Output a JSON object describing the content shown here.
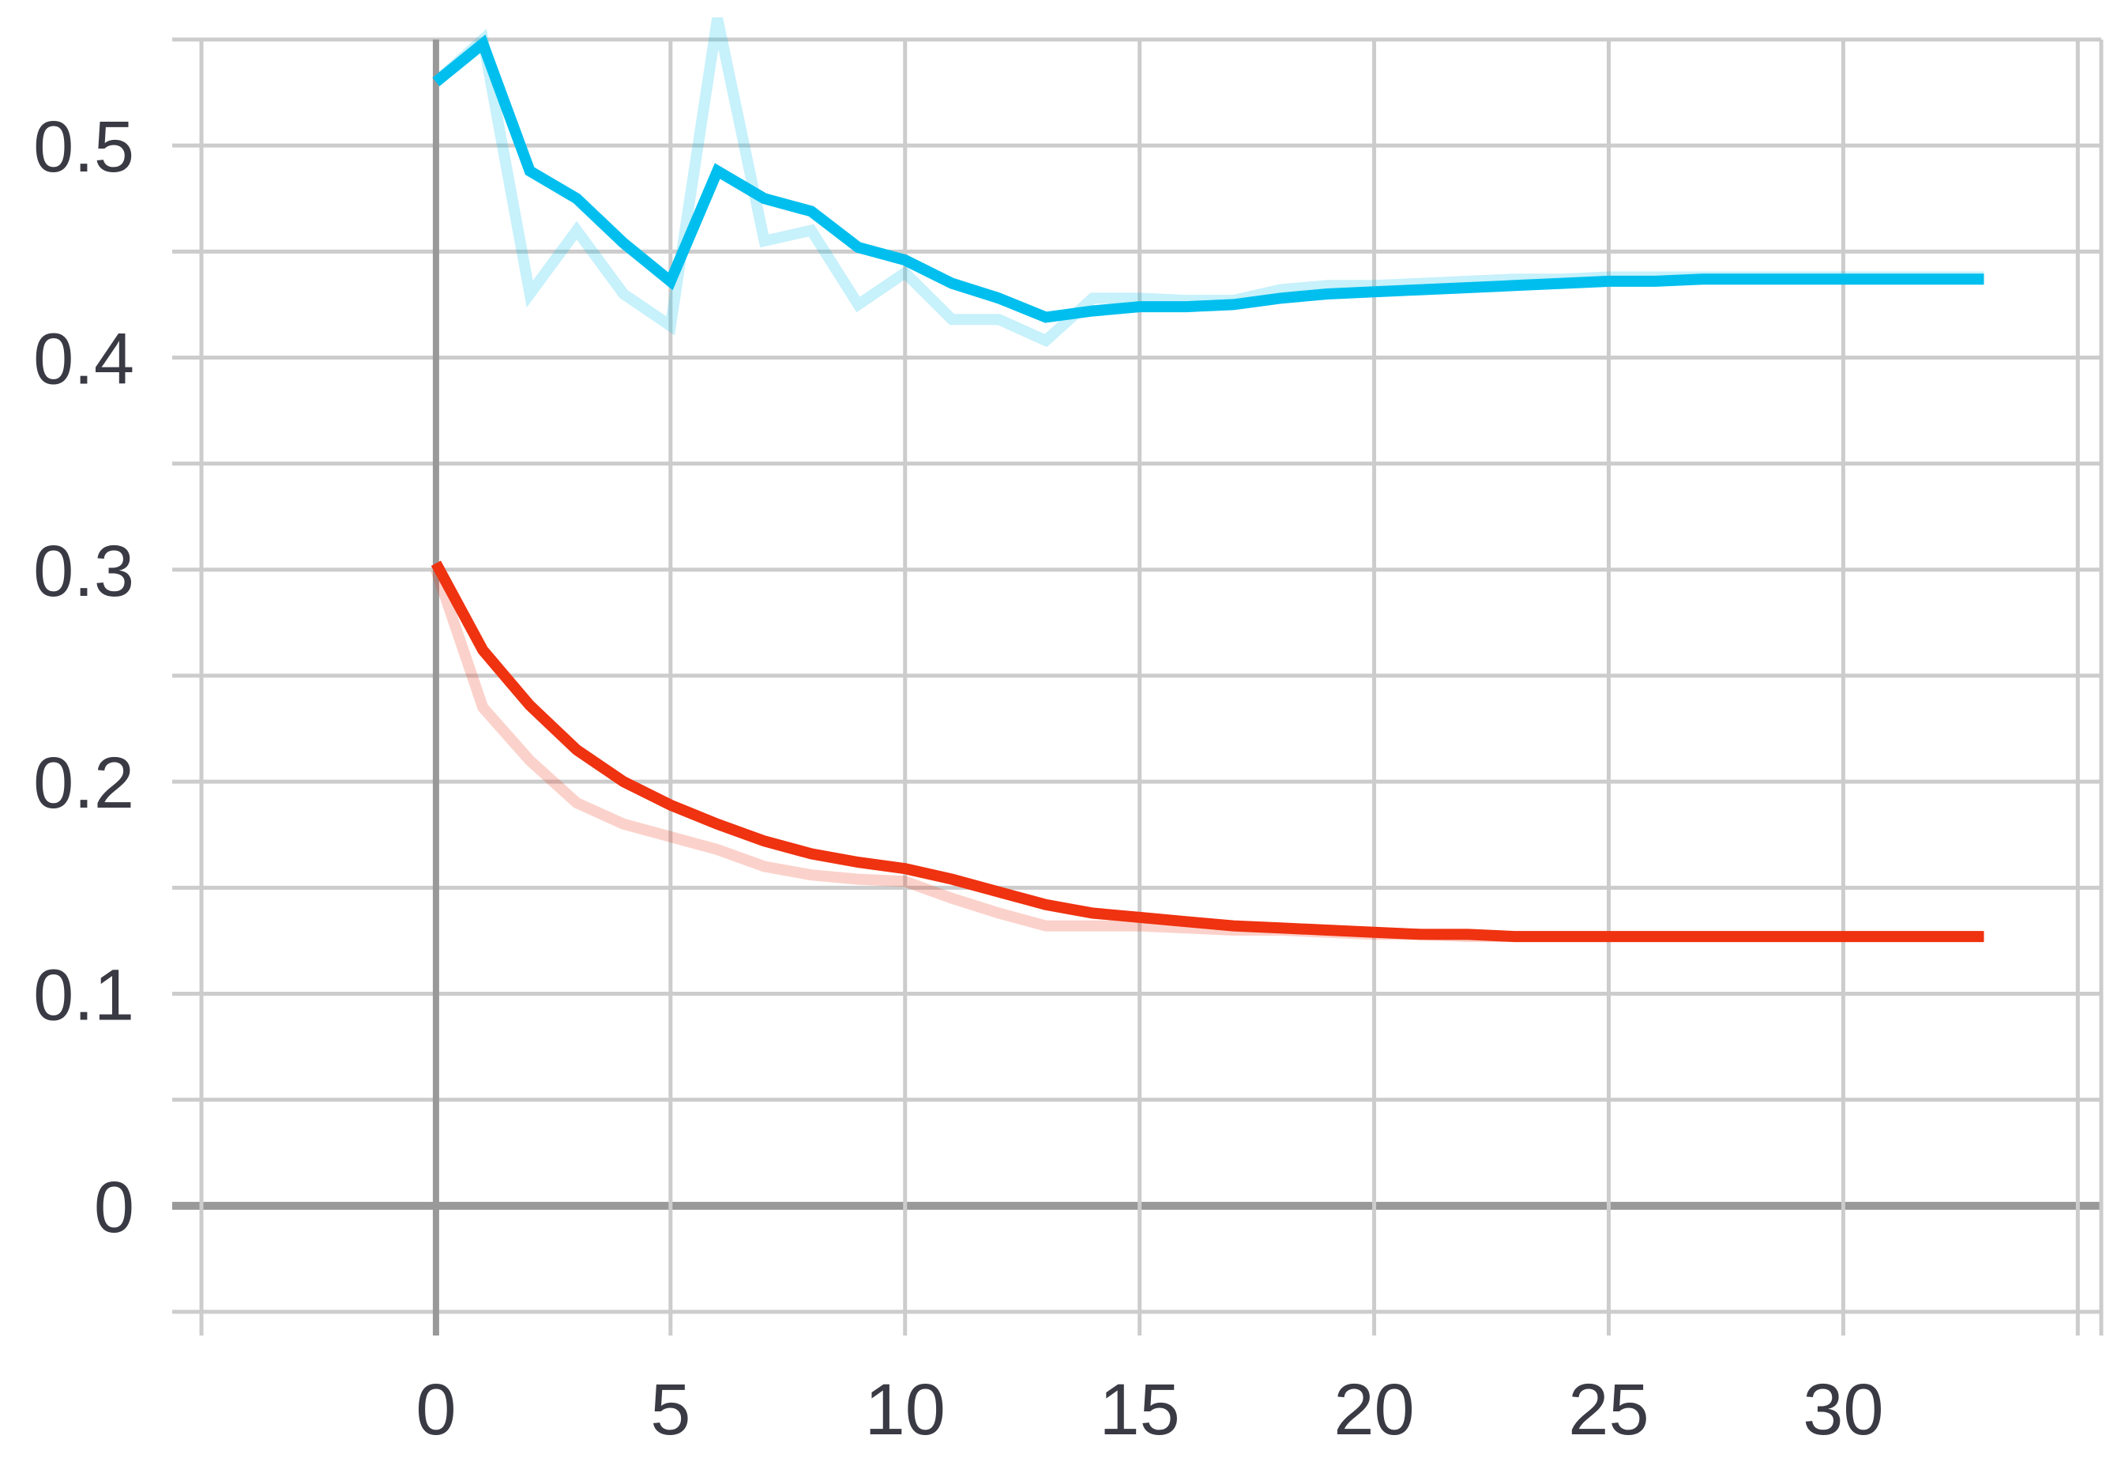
{
  "chart_data": {
    "type": "line",
    "title": "",
    "xlabel": "",
    "ylabel": "",
    "xlim": [
      -5,
      35.5
    ],
    "ylim": [
      -0.05,
      0.55
    ],
    "x_ticks": [
      "0",
      "5",
      "10",
      "15",
      "20",
      "25",
      "30"
    ],
    "y_ticks": [
      "0",
      "0.1",
      "0.2",
      "0.3",
      "0.4",
      "0.5"
    ],
    "grid": true,
    "colors": {
      "series_blue": "#00bfee",
      "series_red": "#ef3210",
      "grid": "#cccccc",
      "zero_axis": "#999999",
      "text": "#3a3a44"
    },
    "series": [
      {
        "color_key": "series_blue",
        "x": [
          0,
          1,
          2,
          3,
          4,
          5,
          6,
          7,
          8,
          9,
          10,
          11,
          12,
          13,
          14,
          15,
          16,
          17,
          18,
          19,
          20,
          21,
          22,
          23,
          24,
          25,
          26,
          27,
          28,
          29,
          30,
          31,
          32,
          33
        ],
        "raw": [
          0.53,
          0.55,
          0.43,
          0.46,
          0.43,
          0.415,
          0.56,
          0.455,
          0.46,
          0.425,
          0.44,
          0.418,
          0.418,
          0.408,
          0.428,
          0.428,
          0.427,
          0.427,
          0.432,
          0.434,
          0.434,
          0.435,
          0.436,
          0.437,
          0.437,
          0.438,
          0.438,
          0.438,
          0.438,
          0.438,
          0.438,
          0.438,
          0.438,
          0.438
        ],
        "smoothed": [
          0.53,
          0.548,
          0.488,
          0.475,
          0.454,
          0.436,
          0.488,
          0.475,
          0.469,
          0.452,
          0.446,
          0.435,
          0.428,
          0.419,
          0.422,
          0.424,
          0.424,
          0.425,
          0.428,
          0.43,
          0.431,
          0.432,
          0.433,
          0.434,
          0.435,
          0.436,
          0.436,
          0.437,
          0.437,
          0.437,
          0.437,
          0.437,
          0.437,
          0.437
        ]
      },
      {
        "color_key": "series_red",
        "x": [
          0,
          1,
          2,
          3,
          4,
          5,
          6,
          7,
          8,
          9,
          10,
          11,
          12,
          13,
          14,
          15,
          16,
          17,
          18,
          19,
          20,
          21,
          22,
          23,
          24,
          25,
          26,
          27,
          28,
          29,
          30,
          31,
          32,
          33
        ],
        "raw": [
          0.3,
          0.235,
          0.21,
          0.19,
          0.18,
          0.174,
          0.168,
          0.16,
          0.156,
          0.154,
          0.153,
          0.145,
          0.138,
          0.132,
          0.132,
          0.132,
          0.131,
          0.13,
          0.13,
          0.129,
          0.128,
          0.128,
          0.127,
          0.127,
          0.127,
          0.127,
          0.127,
          0.127,
          0.127,
          0.127,
          0.127,
          0.127,
          0.127,
          0.127
        ],
        "smoothed": [
          0.303,
          0.262,
          0.236,
          0.215,
          0.2,
          0.189,
          0.18,
          0.172,
          0.166,
          0.162,
          0.159,
          0.154,
          0.148,
          0.142,
          0.138,
          0.136,
          0.134,
          0.132,
          0.131,
          0.13,
          0.129,
          0.128,
          0.128,
          0.127,
          0.127,
          0.127,
          0.127,
          0.127,
          0.127,
          0.127,
          0.127,
          0.127,
          0.127,
          0.127
        ]
      }
    ]
  }
}
